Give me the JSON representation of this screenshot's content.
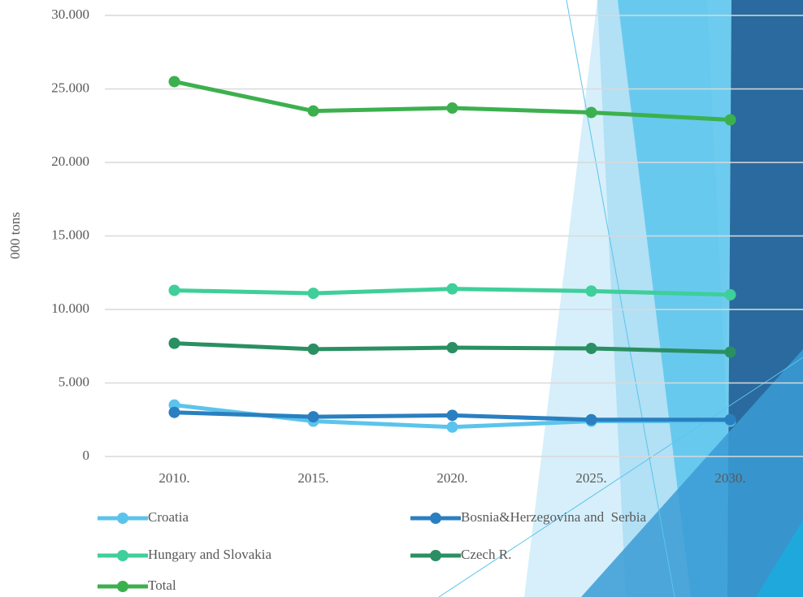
{
  "chart_data": {
    "type": "line",
    "y_label": "000 tons",
    "categories": [
      "2010.",
      "2015.",
      "2020.",
      "2025.",
      "2030."
    ],
    "series": [
      {
        "name": "Croatia",
        "color": "#5bc4ec",
        "values": [
          3500,
          2400,
          2000,
          2400,
          2400
        ]
      },
      {
        "name": "Bosnia&Herzegovina and  Serbia",
        "color": "#2a7fc0",
        "values": [
          3000,
          2700,
          2800,
          2500,
          2500
        ]
      },
      {
        "name": "Hungary and Slovakia",
        "color": "#3ecf9a",
        "values": [
          11300,
          11100,
          11400,
          11250,
          11000
        ]
      },
      {
        "name": "Czech R.",
        "color": "#2a8f62",
        "values": [
          7700,
          7300,
          7400,
          7350,
          7100
        ]
      },
      {
        "name": "Total",
        "color": "#3cb04e",
        "values": [
          25500,
          23500,
          23700,
          23400,
          22900
        ]
      }
    ],
    "ylim": [
      0,
      30000
    ],
    "yticks": [
      0,
      {
        "value": 5000,
        "label": "5.000"
      },
      {
        "value": 10000,
        "label": "10.000"
      },
      {
        "value": 15000,
        "label": "15.000"
      },
      {
        "value": 20000,
        "label": "20.000"
      },
      {
        "value": 25000,
        "label": "25.000"
      },
      {
        "value": 30000,
        "label": "30.000"
      }
    ],
    "grid": true
  }
}
